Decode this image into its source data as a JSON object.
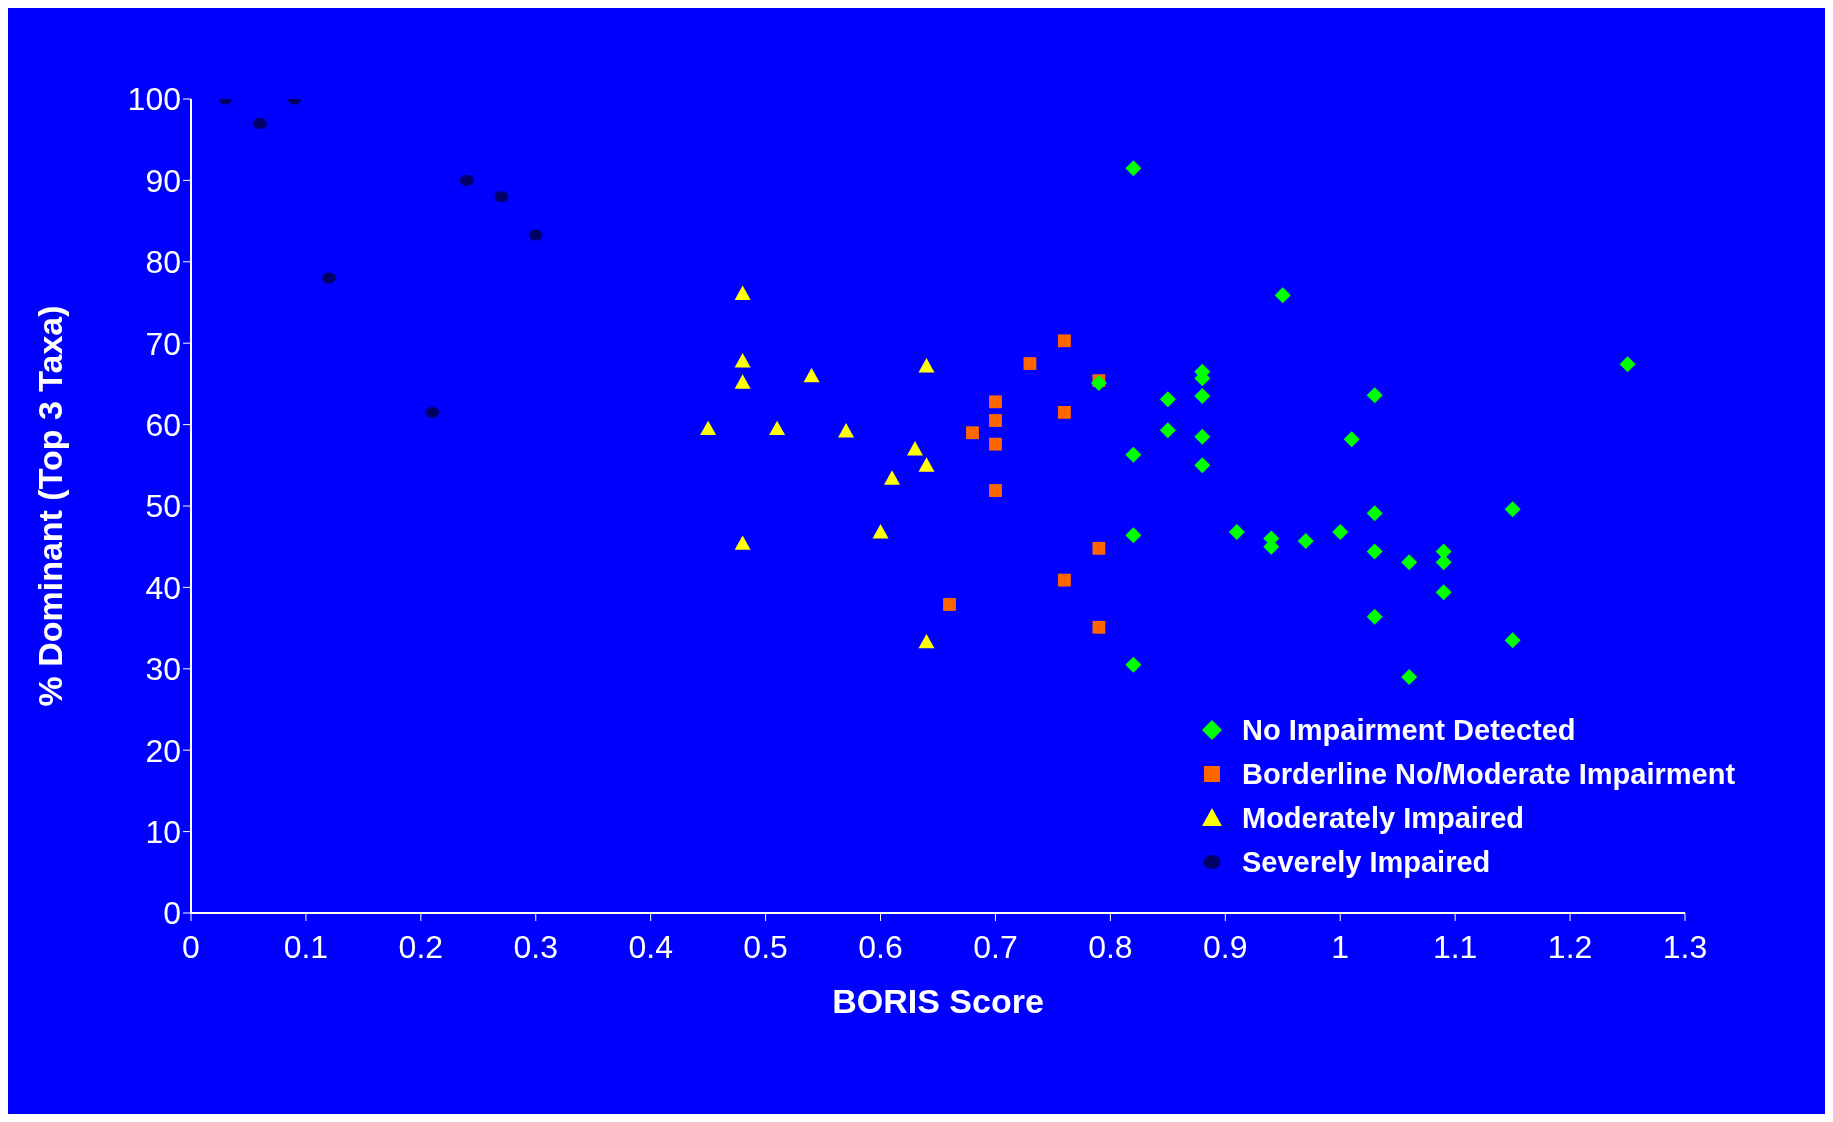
{
  "chart_data": {
    "type": "scatter",
    "xlabel": "BORIS Score",
    "ylabel": "% Dominant (Top 3 Taxa)",
    "xlim": [
      0,
      1.3
    ],
    "xticks": [
      0,
      0.1,
      0.2,
      0.3,
      0.4,
      0.5,
      0.6,
      0.7,
      0.8,
      0.9,
      1,
      1.1,
      1.2,
      1.3
    ],
    "ylim": [
      0,
      100
    ],
    "yticks": [
      0,
      10,
      20,
      30,
      40,
      50,
      60,
      70,
      80,
      90,
      100
    ],
    "grid": false,
    "legend": "bottom right",
    "series": [
      {
        "name": "No Impairment Detected",
        "color": "#00ff00",
        "marker": "diamond",
        "x": [
          0.82,
          0.95,
          1.25,
          0.79,
          0.88,
          0.88,
          0.85,
          0.88,
          1.03,
          0.85,
          0.88,
          1.01,
          0.82,
          0.88,
          1.15,
          1.03,
          0.91,
          1.0,
          0.82,
          0.94,
          0.97,
          0.94,
          1.03,
          1.09,
          1.06,
          1.09,
          1.09,
          1.03,
          1.15,
          0.82,
          1.06
        ],
        "values": [
          91.5,
          75.9,
          67.4,
          65.1,
          66.5,
          65.7,
          63.1,
          63.5,
          63.6,
          59.3,
          58.5,
          58.2,
          56.3,
          55,
          49.6,
          49.1,
          46.8,
          46.8,
          46.4,
          46,
          45.7,
          45,
          44.4,
          44.4,
          43.1,
          43.1,
          39.4,
          36.4,
          33.5,
          30.5,
          29
        ]
      },
      {
        "name": "Borderline No/Moderate Impairment",
        "color": "#ff6600",
        "marker": "square",
        "x": [
          0.66,
          0.68,
          0.7,
          0.7,
          0.7,
          0.7,
          0.73,
          0.76,
          0.76,
          0.76,
          0.79,
          0.79,
          0.79
        ],
        "values": [
          37.9,
          59,
          62.8,
          60.5,
          57.6,
          51.9,
          67.5,
          70.3,
          61.5,
          40.9,
          65.4,
          44.8,
          35.1
        ]
      },
      {
        "name": "Moderately Impaired",
        "color": "#ffff00",
        "marker": "triangle",
        "x": [
          0.48,
          0.48,
          0.48,
          0.45,
          0.51,
          0.54,
          0.57,
          0.64,
          0.63,
          0.64,
          0.61,
          0.6,
          0.48,
          0.64
        ],
        "values": [
          76.1,
          67.8,
          65.2,
          59.5,
          59.5,
          66,
          59.2,
          67.2,
          57,
          55,
          53.4,
          46.8,
          45.4,
          33.3
        ]
      },
      {
        "name": "Severely Impaired",
        "color": "#000066",
        "marker": "circle",
        "x": [
          0.03,
          0.06,
          0.09,
          0.12,
          0.21,
          0.24,
          0.27,
          0.3
        ],
        "values": [
          100,
          97,
          100,
          78,
          61.5,
          90,
          88,
          83.3
        ]
      }
    ]
  }
}
